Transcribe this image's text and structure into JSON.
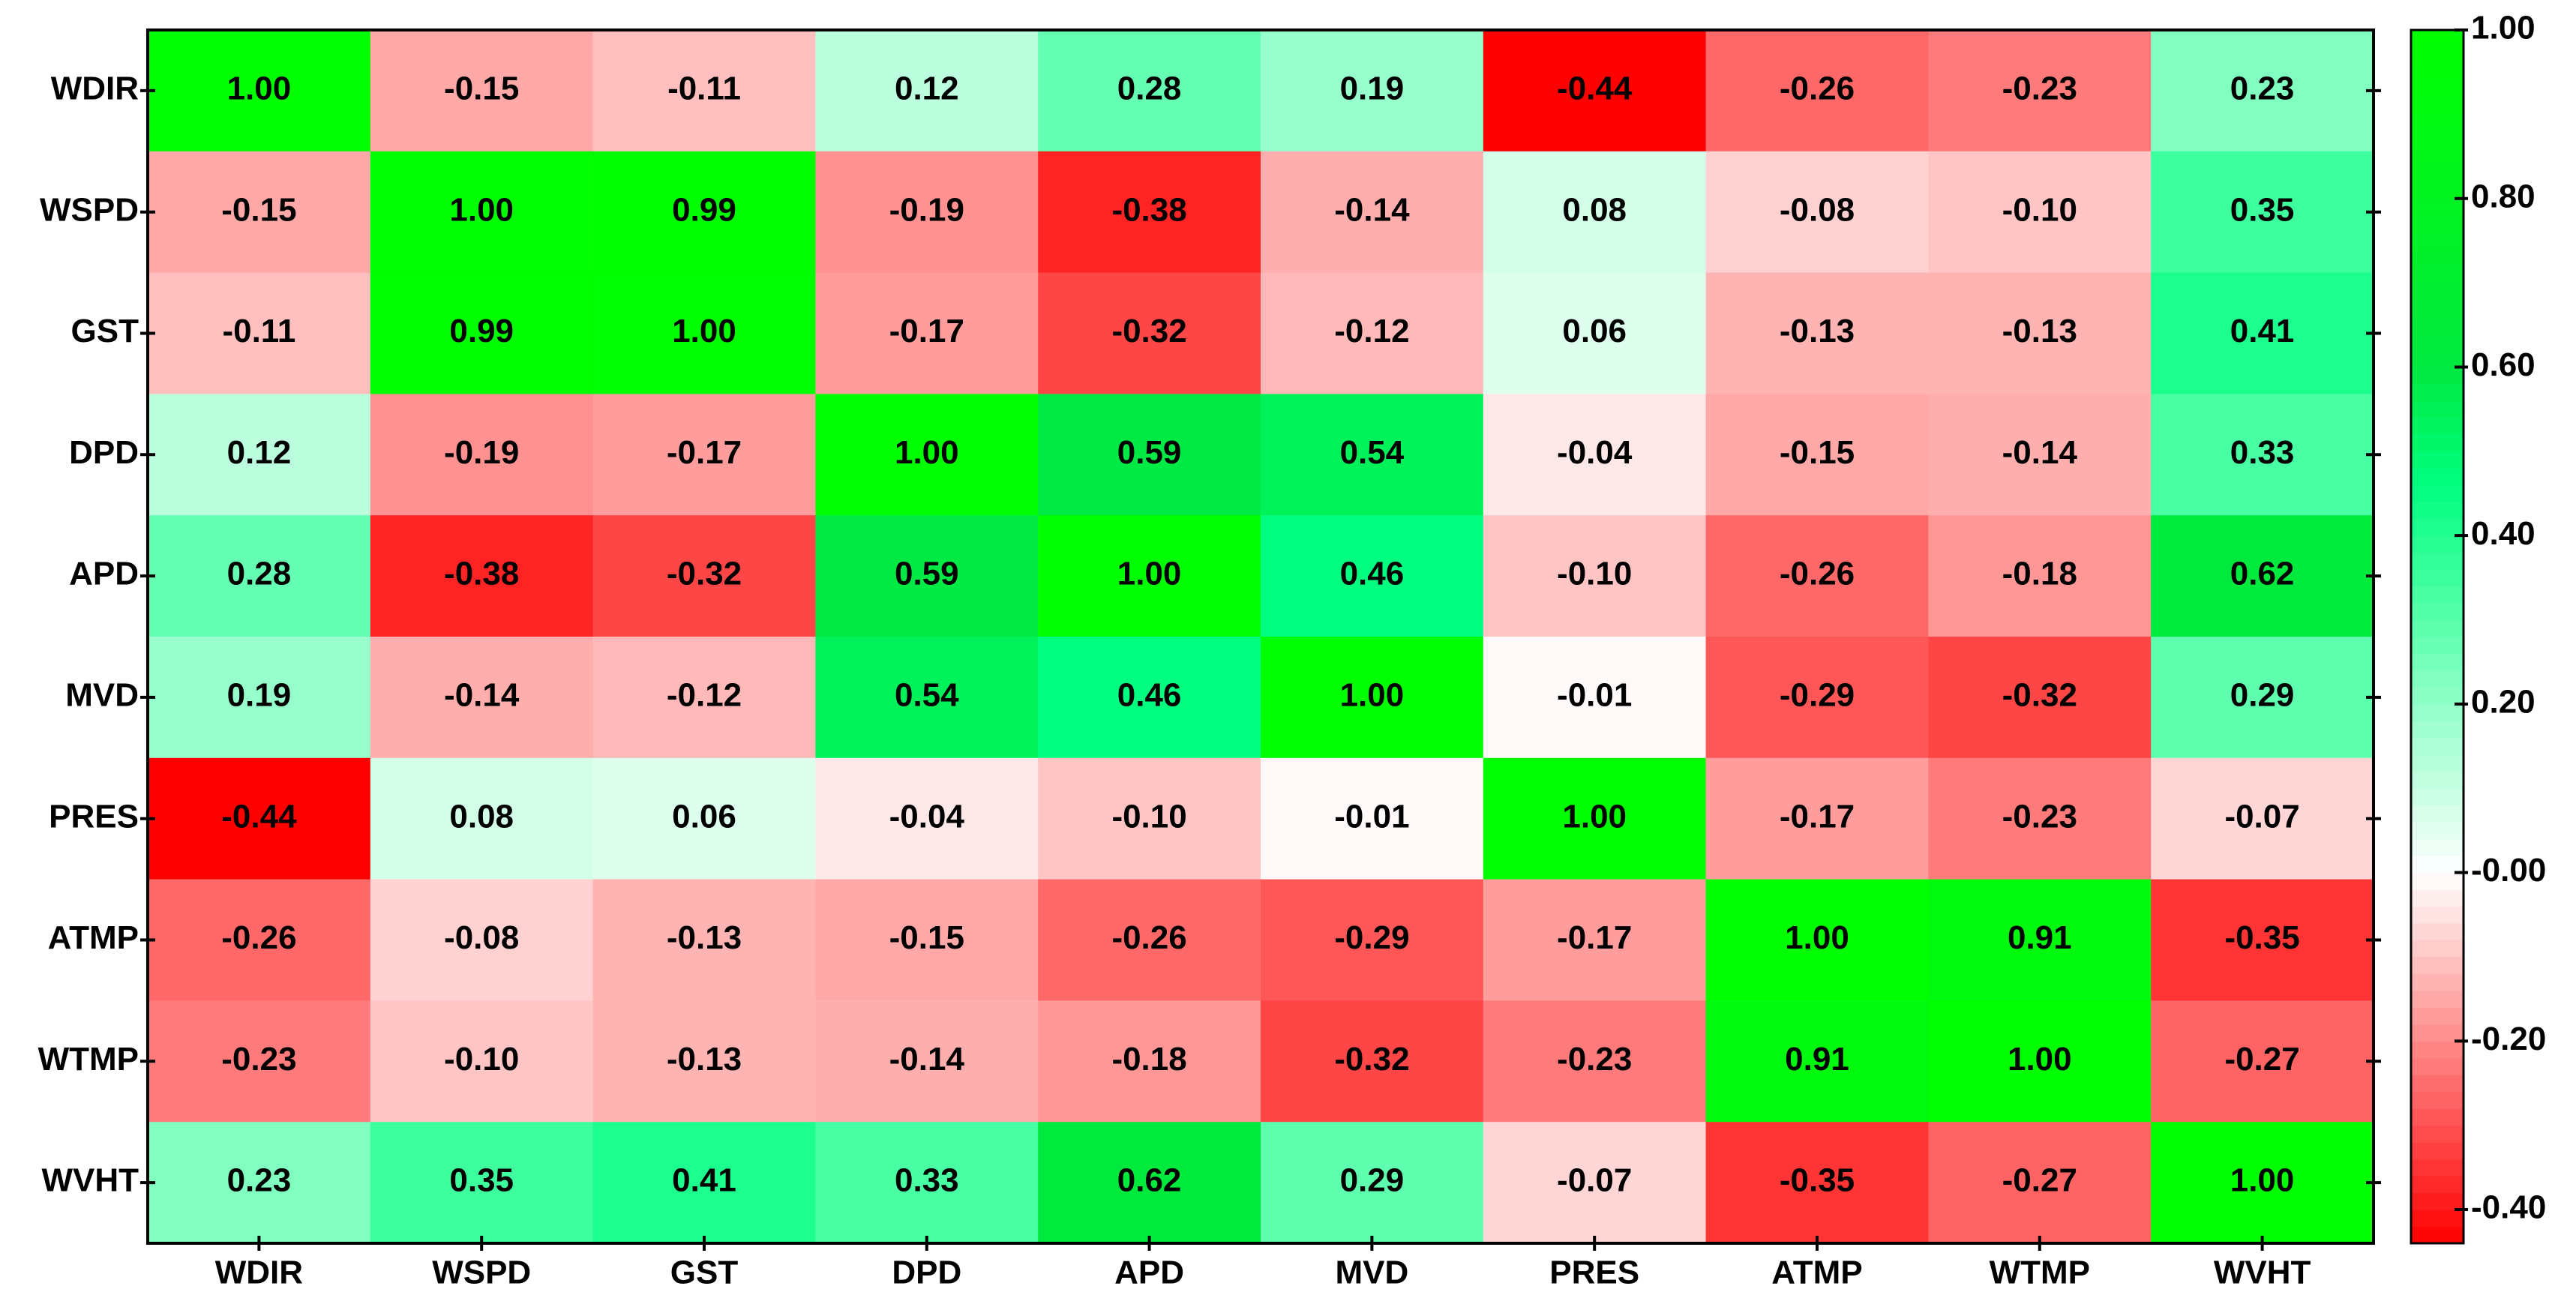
{
  "chart_data": {
    "type": "heatmap",
    "categories": [
      "WDIR",
      "WSPD",
      "GST",
      "DPD",
      "APD",
      "MVD",
      "PRES",
      "ATMP",
      "WTMP",
      "WVHT"
    ],
    "values": [
      [
        1.0,
        -0.15,
        -0.11,
        0.12,
        0.28,
        0.19,
        -0.44,
        -0.26,
        -0.23,
        0.23
      ],
      [
        -0.15,
        1.0,
        0.99,
        -0.19,
        -0.38,
        -0.14,
        0.08,
        -0.08,
        -0.1,
        0.35
      ],
      [
        -0.11,
        0.99,
        1.0,
        -0.17,
        -0.32,
        -0.12,
        0.06,
        -0.13,
        -0.13,
        0.41
      ],
      [
        0.12,
        -0.19,
        -0.17,
        1.0,
        0.59,
        0.54,
        -0.04,
        -0.15,
        -0.14,
        0.33
      ],
      [
        0.28,
        -0.38,
        -0.32,
        0.59,
        1.0,
        0.46,
        -0.1,
        -0.26,
        -0.18,
        0.62
      ],
      [
        0.19,
        -0.14,
        -0.12,
        0.54,
        0.46,
        1.0,
        -0.01,
        -0.29,
        -0.32,
        0.29
      ],
      [
        -0.44,
        0.08,
        0.06,
        -0.04,
        -0.1,
        -0.01,
        1.0,
        -0.17,
        -0.23,
        -0.07
      ],
      [
        -0.26,
        -0.08,
        -0.13,
        -0.15,
        -0.26,
        -0.29,
        -0.17,
        1.0,
        0.91,
        -0.35
      ],
      [
        -0.23,
        -0.1,
        -0.13,
        -0.14,
        -0.18,
        -0.32,
        -0.23,
        0.91,
        1.0,
        -0.27
      ],
      [
        0.23,
        0.35,
        0.41,
        0.33,
        0.62,
        0.29,
        -0.07,
        -0.35,
        -0.27,
        1.0
      ]
    ],
    "value_labels": [
      [
        "1.00",
        "-0.15",
        "-0.11",
        "0.12",
        "0.28",
        "0.19",
        "-0.44",
        "-0.26",
        "-0.23",
        "0.23"
      ],
      [
        "-0.15",
        "1.00",
        "0.99",
        "-0.19",
        "-0.38",
        "-0.14",
        "0.08",
        "-0.08",
        "-0.10",
        "0.35"
      ],
      [
        "-0.11",
        "0.99",
        "1.00",
        "-0.17",
        "-0.32",
        "-0.12",
        "0.06",
        "-0.13",
        "-0.13",
        "0.41"
      ],
      [
        "0.12",
        "-0.19",
        "-0.17",
        "1.00",
        "0.59",
        "0.54",
        "-0.04",
        "-0.15",
        "-0.14",
        "0.33"
      ],
      [
        "0.28",
        "-0.38",
        "-0.32",
        "0.59",
        "1.00",
        "0.46",
        "-0.10",
        "-0.26",
        "-0.18",
        "0.62"
      ],
      [
        "0.19",
        "-0.14",
        "-0.12",
        "0.54",
        "0.46",
        "1.00",
        "-0.01",
        "-0.29",
        "-0.32",
        "0.29"
      ],
      [
        "-0.44",
        "0.08",
        "0.06",
        "-0.04",
        "-0.10",
        "-0.01",
        "1.00",
        "-0.17",
        "-0.23",
        "-0.07"
      ],
      [
        "-0.26",
        "-0.08",
        "-0.13",
        "-0.15",
        "-0.26",
        "-0.29",
        "-0.17",
        "1.00",
        "0.91",
        "-0.35"
      ],
      [
        "-0.23",
        "-0.10",
        "-0.13",
        "-0.14",
        "-0.18",
        "-0.32",
        "-0.23",
        "0.91",
        "1.00",
        "-0.27"
      ],
      [
        "0.23",
        "0.35",
        "0.41",
        "0.33",
        "0.62",
        "0.29",
        "-0.07",
        "-0.35",
        "-0.27",
        "1.00"
      ]
    ],
    "zlim": [
      -0.44,
      1.0
    ],
    "zticks": [
      {
        "value": 1.0,
        "label": "1.00"
      },
      {
        "value": 0.8,
        "label": "0.80"
      },
      {
        "value": 0.6,
        "label": "0.60"
      },
      {
        "value": 0.4,
        "label": "0.40"
      },
      {
        "value": 0.2,
        "label": "0.20"
      },
      {
        "value": 0,
        "label": "-0.00"
      },
      {
        "value": -0.2,
        "label": "-0.20"
      },
      {
        "value": -0.4,
        "label": "-0.40"
      }
    ],
    "colorscale": [
      [
        -0.44,
        "#ff0000"
      ],
      [
        0,
        "#ffffff"
      ],
      [
        0.46,
        "#00ff80"
      ],
      [
        0.6,
        "#00e840"
      ],
      [
        1.0,
        "#00ff00"
      ]
    ]
  }
}
